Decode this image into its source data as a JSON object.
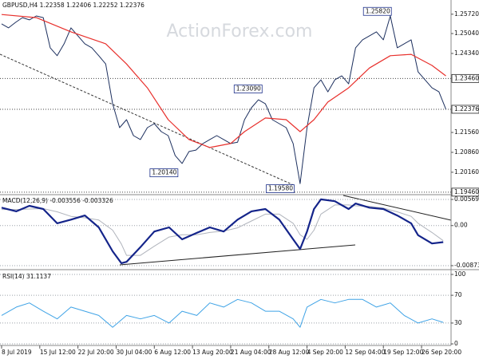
{
  "chart_data": [
    {
      "type": "line",
      "title": "GBPUSD,H4 1.22358 1.22406 1.22252 1.22376",
      "watermark": "ActionForex.com",
      "xlim": [
        0,
        518
      ],
      "ylim": [
        1.194,
        1.2622
      ],
      "grid": false,
      "yticks": [
        {
          "value": 1.2572,
          "label": "1.25720"
        },
        {
          "value": 1.2504,
          "label": "1.25040"
        },
        {
          "value": 1.2434,
          "label": "1.24340"
        },
        {
          "value": 1.2156,
          "label": "1.21560"
        },
        {
          "value": 1.2086,
          "label": "1.20860"
        },
        {
          "value": 1.2016,
          "label": "1.20160"
        }
      ],
      "levels": [
        {
          "value": 1.2346,
          "label": "1.23460"
        },
        {
          "value": 1.22376,
          "label": "1.22376"
        },
        {
          "value": 1.1946,
          "label": "1.19460"
        }
      ],
      "annotations": [
        {
          "x": 417,
          "value": 1.2582,
          "label": "1.25820"
        },
        {
          "x": 268,
          "value": 1.2309,
          "label": "1.23090"
        },
        {
          "x": 171,
          "value": 1.2014,
          "label": "1.20140"
        },
        {
          "x": 305,
          "value": 1.1958,
          "label": "1.19580"
        }
      ],
      "series": [
        {
          "color": "#1c2f5e",
          "width": 1,
          "x": [
            0,
            8,
            16,
            24,
            32,
            40,
            48,
            56,
            64,
            72,
            80,
            88,
            96,
            104,
            112,
            120,
            128,
            136,
            144,
            152,
            160,
            168,
            176,
            184,
            192,
            200,
            208,
            216,
            224,
            232,
            240,
            248,
            256,
            264,
            272,
            280,
            288,
            296,
            304,
            312,
            320,
            328,
            336,
            344,
            352,
            360,
            368,
            376,
            384,
            392,
            400,
            408,
            416,
            424,
            432,
            440,
            448,
            456,
            464,
            472,
            480,
            488,
            496,
            504,
            512
          ],
          "values": [
            1.2538,
            1.2524,
            1.2543,
            1.256,
            1.2552,
            1.2566,
            1.256,
            1.2454,
            1.2426,
            1.2468,
            1.2524,
            1.2496,
            1.2468,
            1.2454,
            1.2426,
            1.2397,
            1.2257,
            1.2173,
            1.2201,
            1.2145,
            1.2131,
            1.2173,
            1.2187,
            1.2159,
            1.2145,
            1.2075,
            1.2047,
            1.2089,
            1.2094,
            1.2117,
            1.2131,
            1.2145,
            1.2131,
            1.2117,
            1.2122,
            1.2201,
            1.2243,
            1.2271,
            1.2257,
            1.2201,
            1.2187,
            1.2173,
            1.2117,
            1.1976,
            1.2173,
            1.2313,
            1.2341,
            1.2299,
            1.2341,
            1.2355,
            1.2327,
            1.2454,
            1.2482,
            1.2496,
            1.251,
            1.2482,
            1.2566,
            1.2454,
            1.2468,
            1.2482,
            1.2369,
            1.2341,
            1.2313,
            1.2299,
            1.2238
          ]
        },
        {
          "color": "#e8302c",
          "width": 1.2,
          "x": [
            0,
            40,
            80,
            120,
            144,
            168,
            192,
            216,
            240,
            264,
            280,
            304,
            328,
            344,
            360,
            376,
            400,
            424,
            448,
            472,
            496,
            512
          ],
          "values": [
            1.2571,
            1.256,
            1.251,
            1.2468,
            1.2397,
            1.2313,
            1.2201,
            1.2131,
            1.2103,
            1.2117,
            1.2159,
            1.2207,
            1.2201,
            1.2159,
            1.2201,
            1.2263,
            1.2313,
            1.2383,
            1.2426,
            1.2431,
            1.2392,
            1.2355
          ]
        }
      ]
    },
    {
      "type": "line",
      "title": "MACD(12,26,9) -0.003556 -0.003326",
      "xlim": [
        0,
        518
      ],
      "ylim": [
        -0.00943,
        0.00656
      ],
      "grid": true,
      "yticks": [
        0.005694,
        {
          "value": 0,
          "label": "0.00"
        },
        -0.008737
      ],
      "series": [
        {
          "color": "#b0b4bc",
          "width": 1,
          "x": [
            0,
            17,
            32,
            48,
            64,
            80,
            96,
            112,
            128,
            138,
            144,
            160,
            176,
            193,
            208,
            225,
            240,
            256,
            272,
            288,
            304,
            320,
            336,
            344,
            352,
            360,
            368,
            384,
            400,
            408,
            424,
            440,
            456,
            472,
            480,
            496,
            509
          ],
          "values": [
            0.0035,
            0.0035,
            0.0036,
            0.0037,
            0.003,
            0.002,
            0.0017,
            0.0012,
            -0.001,
            -0.004,
            -0.0065,
            -0.0065,
            -0.0045,
            -0.0025,
            -0.002,
            -0.002,
            -0.0015,
            -0.0012,
            -0.0005,
            0.001,
            0.0025,
            0.0025,
            0.0005,
            -0.002,
            -0.003,
            -0.001,
            0.0025,
            0.0045,
            0.0045,
            0.0043,
            0.0042,
            0.0038,
            0.003,
            0.002,
            0.0005,
            -0.0015,
            -0.0033
          ]
        },
        {
          "color": "#14248a",
          "width": 2.2,
          "x": [
            0,
            17,
            32,
            48,
            64,
            80,
            96,
            112,
            128,
            138,
            144,
            160,
            176,
            193,
            208,
            225,
            240,
            256,
            272,
            288,
            304,
            320,
            336,
            344,
            352,
            360,
            368,
            384,
            400,
            408,
            424,
            440,
            456,
            472,
            480,
            496,
            509
          ],
          "values": [
            0.0039,
            0.0031,
            0.0043,
            0.0036,
            0.0005,
            0.0013,
            0.0022,
            -0.0004,
            -0.0056,
            -0.0082,
            -0.0079,
            -0.0047,
            -0.0013,
            -0.0004,
            -0.003,
            -0.0016,
            -0.0004,
            -0.0013,
            0.0013,
            0.0031,
            0.0036,
            0.0013,
            -0.003,
            -0.0051,
            -0.0013,
            0.0036,
            0.0057,
            0.0053,
            0.0036,
            0.0048,
            0.0039,
            0.0036,
            0.0022,
            0.0005,
            -0.0021,
            -0.0039,
            -0.0036
          ]
        }
      ]
    },
    {
      "type": "line",
      "title": "RSI(14) 31.1137",
      "xlim": [
        0,
        518
      ],
      "ylim": [
        -1.1,
        104.6
      ],
      "grid": true,
      "yticks": [
        100,
        70,
        30,
        0
      ],
      "xticks": [
        {
          "value": 0,
          "label": "8 Jul 2019"
        },
        {
          "value": 44,
          "label": "15 Jul 12:00"
        },
        {
          "value": 88,
          "label": "22 Jul 20:00"
        },
        {
          "value": 132,
          "label": "30 Jul 04:00"
        },
        {
          "value": 176,
          "label": "6 Aug 12:00"
        },
        {
          "value": 220,
          "label": "13 Aug 20:00"
        },
        {
          "value": 264,
          "label": "21 Aug 04:00"
        },
        {
          "value": 308,
          "label": "28 Aug 12:00"
        },
        {
          "value": 352,
          "label": "4 Sep 20:00"
        },
        {
          "value": 396,
          "label": "12 Sep 04:00"
        },
        {
          "value": 440,
          "label": "19 Sep 12:00"
        },
        {
          "value": 484,
          "label": "26 Sep 20:00"
        }
      ],
      "series": [
        {
          "color": "#3fa3e6",
          "width": 1,
          "x": [
            0,
            17,
            32,
            48,
            64,
            80,
            96,
            112,
            128,
            144,
            160,
            176,
            193,
            208,
            225,
            240,
            256,
            272,
            288,
            304,
            320,
            336,
            344,
            352,
            368,
            384,
            400,
            416,
            432,
            448,
            464,
            480,
            496,
            509
          ],
          "values": [
            41,
            53,
            59,
            47,
            36,
            53,
            47,
            41,
            24,
            41,
            36,
            41,
            30,
            47,
            41,
            59,
            53,
            64,
            59,
            47,
            47,
            36,
            24,
            53,
            64,
            59,
            64,
            64,
            53,
            59,
            41,
            30,
            36,
            31
          ]
        }
      ]
    }
  ]
}
